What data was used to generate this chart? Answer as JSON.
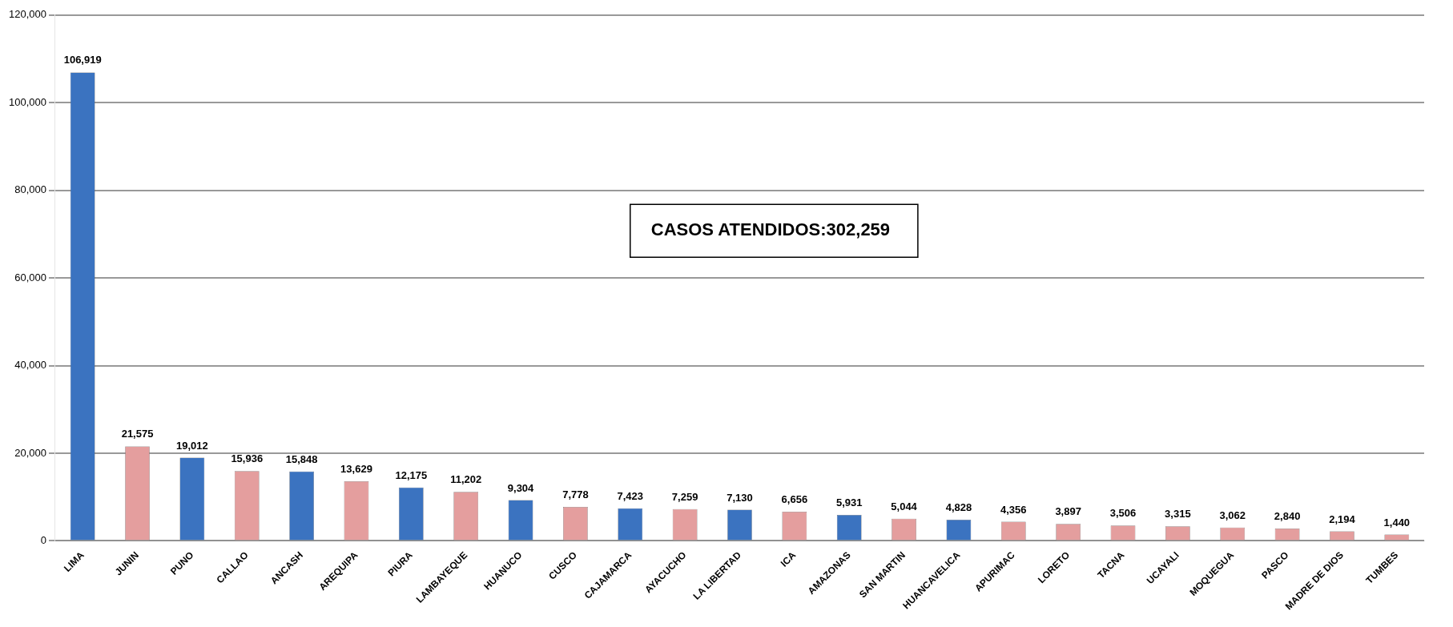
{
  "chart_data": {
    "type": "bar",
    "categories": [
      "LIMA",
      "JUNIN",
      "PUNO",
      "CALLAO",
      "ANCASH",
      "AREQUIPA",
      "PIURA",
      "LAMBAYEQUE",
      "HUANUCO",
      "CUSCO",
      "CAJAMARCA",
      "AYACUCHO",
      "LA LIBERTAD",
      "ICA",
      "AMAZONAS",
      "SAN MARTIN",
      "HUANCAVELICA",
      "APURIMAC",
      "LORETO",
      "TACNA",
      "UCAYALI",
      "MOQUEGUA",
      "PASCO",
      "MADRE DE DIOS",
      "TUMBES"
    ],
    "values": [
      106919,
      21575,
      19012,
      15936,
      15848,
      13629,
      12175,
      11202,
      9304,
      7778,
      7423,
      7259,
      7130,
      6656,
      5931,
      5044,
      4828,
      4356,
      3897,
      3506,
      3315,
      3062,
      2840,
      2194,
      1440
    ],
    "colors": [
      "#3b73c0",
      "#e49e9e",
      "#3b73c0",
      "#e49e9e",
      "#3b73c0",
      "#e49e9e",
      "#3b73c0",
      "#e49e9e",
      "#3b73c0",
      "#e49e9e",
      "#3b73c0",
      "#e49e9e",
      "#3b73c0",
      "#e49e9e",
      "#3b73c0",
      "#e49e9e",
      "#3b73c0",
      "#e49e9e",
      "#e49e9e",
      "#e49e9e",
      "#e49e9e",
      "#e49e9e",
      "#e49e9e",
      "#e49e9e",
      "#e49e9e"
    ],
    "ylim": [
      0,
      120000
    ],
    "yticks": [
      {
        "value": 0,
        "label": "0"
      },
      {
        "value": 20000,
        "label": "20,000"
      },
      {
        "value": 40000,
        "label": "40,000"
      },
      {
        "value": 60000,
        "label": "60,000"
      },
      {
        "value": 80000,
        "label": "80,000"
      },
      {
        "value": 100000,
        "label": "100,000"
      },
      {
        "value": 120000,
        "label": "120,000"
      }
    ],
    "value_labels": [
      "106,919",
      "21,575",
      "19,012",
      "15,936",
      "15,848",
      "13,629",
      "12,175",
      "11,202",
      "9,304",
      "7,778",
      "7,423",
      "7,259",
      "7,130",
      "6,656",
      "5,931",
      "5,044",
      "4,828",
      "4,356",
      "3,897",
      "3,506",
      "3,315",
      "3,062",
      "2,840",
      "2,194",
      "1,440"
    ],
    "grid": "y",
    "legend": false,
    "annotations": [
      "CASOS ATENDIDOS:302,259"
    ]
  }
}
